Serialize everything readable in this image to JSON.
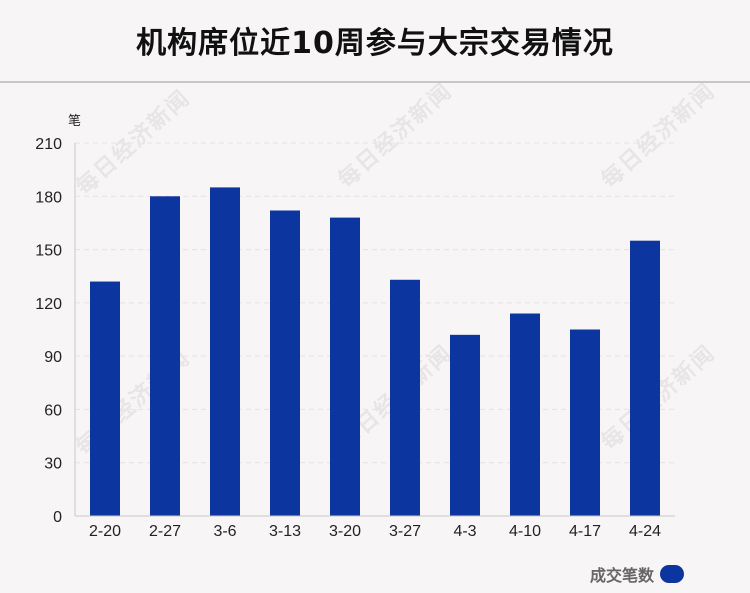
{
  "title": "机构席位近10周参与大宗交易情况",
  "watermark_text": "每日经济新闻",
  "colors": {
    "bar": "#0c359f",
    "background": "#f8f5f6",
    "grid": "#e4e2e4",
    "axis": "#c8c8c8"
  },
  "chart_data": {
    "type": "bar",
    "title": "机构席位近10周参与大宗交易情况",
    "ylabel": "笔",
    "xlabel": "",
    "ylim": [
      0,
      210
    ],
    "yticks": [
      0,
      30,
      60,
      90,
      120,
      150,
      180,
      210
    ],
    "categories": [
      "2-20",
      "2-27",
      "3-6",
      "3-13",
      "3-20",
      "3-27",
      "4-3",
      "4-10",
      "4-17",
      "4-24"
    ],
    "series": [
      {
        "name": "成交笔数",
        "values": [
          132,
          180,
          185,
          172,
          168,
          133,
          102,
          114,
          105,
          155
        ]
      }
    ],
    "grid": true,
    "legend_position": "bottom-right"
  }
}
